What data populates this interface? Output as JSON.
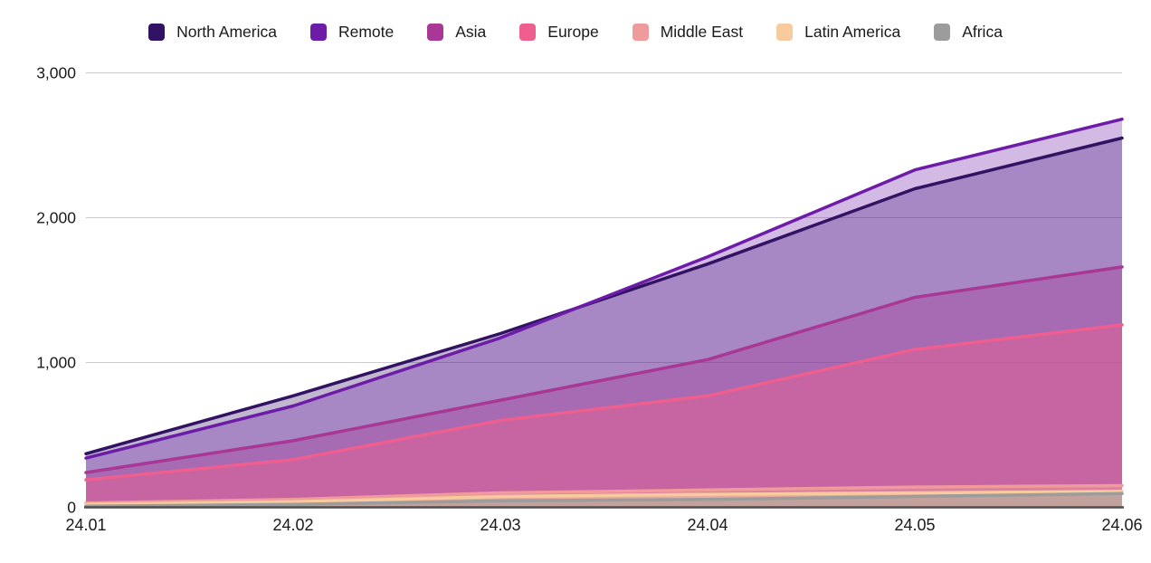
{
  "chart_data": {
    "type": "area",
    "mode": "overlapping",
    "title": "",
    "xlabel": "",
    "ylabel": "",
    "legend_position": "top",
    "grid": true,
    "background": "#ffffff",
    "axis_color": "#4d4d4d",
    "grid_color": "#cccccc",
    "text_color": "#1a1a1a",
    "ylim": [
      0,
      3000
    ],
    "y_ticks": [
      {
        "value": 0,
        "label": "0"
      },
      {
        "value": 1000,
        "label": "1,000"
      },
      {
        "value": 2000,
        "label": "2,000"
      },
      {
        "value": 3000,
        "label": "3,000"
      }
    ],
    "categories": [
      "24.01",
      "24.02",
      "24.03",
      "24.04",
      "24.05",
      "24.06"
    ],
    "series": [
      {
        "name": "North America",
        "color": "#321363",
        "fill_opacity": 0.3,
        "values": [
          370,
          770,
          1200,
          1680,
          2200,
          2550
        ]
      },
      {
        "name": "Remote",
        "color": "#6d1ca8",
        "fill_opacity": 0.3,
        "values": [
          340,
          700,
          1170,
          1730,
          2330,
          2680
        ]
      },
      {
        "name": "Asia",
        "color": "#a93795",
        "fill_opacity": 0.35,
        "values": [
          240,
          460,
          740,
          1020,
          1450,
          1660
        ]
      },
      {
        "name": "Europe",
        "color": "#ee5f8f",
        "fill_opacity": 0.45,
        "values": [
          190,
          330,
          600,
          770,
          1090,
          1260
        ]
      },
      {
        "name": "Middle East",
        "color": "#f09b9b",
        "fill_opacity": 0.5,
        "values": [
          30,
          55,
          100,
          120,
          140,
          150
        ]
      },
      {
        "name": "Latin America",
        "color": "#f7cb9e",
        "fill_opacity": 0.55,
        "values": [
          20,
          38,
          75,
          90,
          100,
          110
        ]
      },
      {
        "name": "Africa",
        "color": "#9c9c9c",
        "fill_opacity": 0.5,
        "values": [
          8,
          20,
          45,
          55,
          75,
          95
        ]
      }
    ]
  }
}
